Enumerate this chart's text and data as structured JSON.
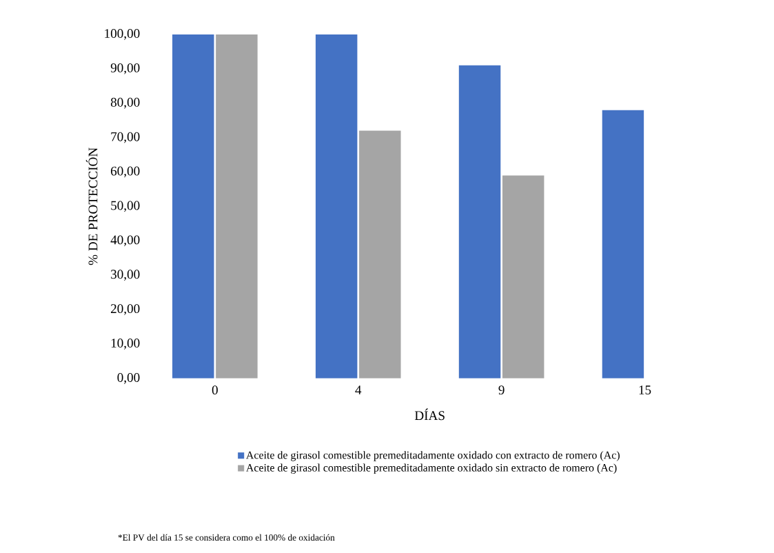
{
  "chart_data": {
    "type": "bar",
    "xlabel": "DÍAS",
    "ylabel": "% DE PROTECCIÓN",
    "categories": [
      "0",
      "4",
      "9",
      "15"
    ],
    "series": [
      {
        "name": "Aceite de girasol comestible premeditadamente oxidado con extracto de romero (Ac)",
        "color": "#4472c4",
        "values": [
          100,
          100,
          91,
          78
        ]
      },
      {
        "name": "Aceite de girasol comestible premeditadamente oxidado sin extracto de romero (Ac)",
        "color": "#a5a5a5",
        "values": [
          100,
          72,
          59,
          0
        ]
      }
    ],
    "ylim": [
      0,
      100
    ],
    "yticks": [
      {
        "value": 0,
        "label": "0,00"
      },
      {
        "value": 10,
        "label": "10,00"
      },
      {
        "value": 20,
        "label": "20,00"
      },
      {
        "value": 30,
        "label": "30,00"
      },
      {
        "value": 40,
        "label": "40,00"
      },
      {
        "value": 50,
        "label": "50,00"
      },
      {
        "value": 60,
        "label": "60,00"
      },
      {
        "value": 70,
        "label": "70,00"
      },
      {
        "value": 80,
        "label": "80,00"
      },
      {
        "value": 90,
        "label": "90,00"
      },
      {
        "value": 100,
        "label": "100,00"
      }
    ],
    "legend": "bottom",
    "annotations": [
      "*El PV del día 15 se considera como el 100% de oxidación"
    ]
  }
}
